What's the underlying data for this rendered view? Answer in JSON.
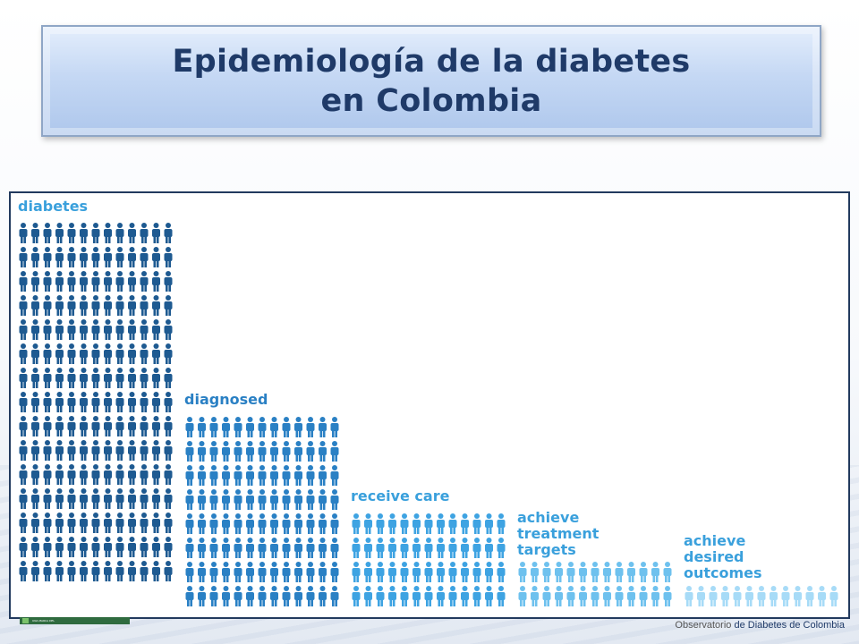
{
  "slide": {
    "title_line1": "Epidemiología de la diabetes",
    "title_line2": "en Colombia"
  },
  "infographic": {
    "stages": [
      {
        "label": "diabetes",
        "color": "#1e5a91",
        "rows": 15,
        "cols": 13
      },
      {
        "label": "diagnosed",
        "color": "#2a80c4",
        "rows": 8,
        "cols": 13
      },
      {
        "label": "receive care",
        "color": "#3ea3e2",
        "rows": 4,
        "cols": 13
      },
      {
        "label": "achieve\ntreatment\ntargets",
        "color": "#6ec1ee",
        "rows": 2,
        "cols": 13
      },
      {
        "label": "achieve\ndesired\noutcomes",
        "color": "#a7dbf7",
        "rows": 1,
        "cols": 13
      }
    ]
  },
  "footer": {
    "left_text": "UNA MARCA DEL",
    "right_prefix": "Observatorio",
    "right_main": "de Diabetes de Colombia"
  }
}
